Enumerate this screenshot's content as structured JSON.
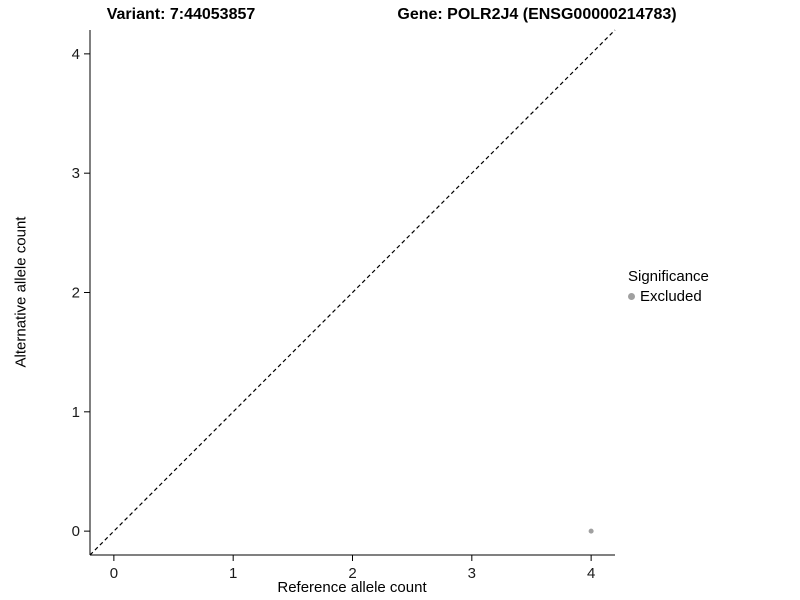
{
  "chart_data": {
    "type": "scatter",
    "title_left": "Variant: 7:44053857",
    "title_right": "Gene: POLR2J4 (ENSG00000214783)",
    "xlabel": "Reference allele count",
    "ylabel": "Alternative allele count",
    "xlim": [
      -0.2,
      4.2
    ],
    "ylim": [
      -0.2,
      4.2
    ],
    "xticks": [
      0,
      1,
      2,
      3,
      4
    ],
    "yticks": [
      0,
      1,
      2,
      3,
      4
    ],
    "grid": false,
    "axis_color": "#000000",
    "identity_line": {
      "style": "dashed",
      "color": "#000000",
      "from": [
        -0.2,
        -0.2
      ],
      "to": [
        4.2,
        4.2
      ]
    },
    "series": [
      {
        "name": "Excluded",
        "color": "#a0a0a0",
        "point_radius": 2.5,
        "points": [
          {
            "x": 4,
            "y": 0
          }
        ]
      }
    ],
    "legend": {
      "title": "Significance",
      "position": "right",
      "entries": [
        {
          "label": "Excluded",
          "color": "#a0a0a0"
        }
      ]
    }
  }
}
